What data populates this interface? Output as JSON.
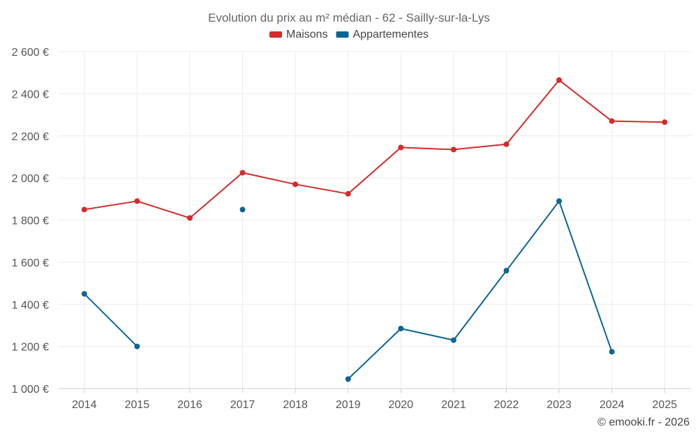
{
  "chart_data": {
    "type": "line",
    "title": "Evolution du prix au m² médian - 62 - Sailly-sur-la-Lys",
    "categories": [
      "2014",
      "2015",
      "2016",
      "2017",
      "2018",
      "2019",
      "2020",
      "2021",
      "2022",
      "2023",
      "2024",
      "2025"
    ],
    "ylim": [
      1000,
      2600
    ],
    "yticks": [
      1000,
      1200,
      1400,
      1600,
      1800,
      2000,
      2200,
      2400,
      2600
    ],
    "ytick_labels": [
      "1 000 €",
      "1 200 €",
      "1 400 €",
      "1 600 €",
      "1 800 €",
      "2 000 €",
      "2 200 €",
      "2 400 €",
      "2 600 €"
    ],
    "grid": true,
    "legend_position": "top-center",
    "series": [
      {
        "name": "Maisons",
        "color": "#d42a2a",
        "values": [
          1850,
          1890,
          1810,
          2025,
          1970,
          1925,
          2145,
          2135,
          2160,
          2465,
          2270,
          2265
        ]
      },
      {
        "name": "Appartementes",
        "color": "#0b6496",
        "values": [
          1450,
          1200,
          null,
          1850,
          null,
          1045,
          1285,
          1230,
          1560,
          1890,
          1175,
          null
        ]
      }
    ]
  },
  "credit": "© emooki.fr - 2026"
}
